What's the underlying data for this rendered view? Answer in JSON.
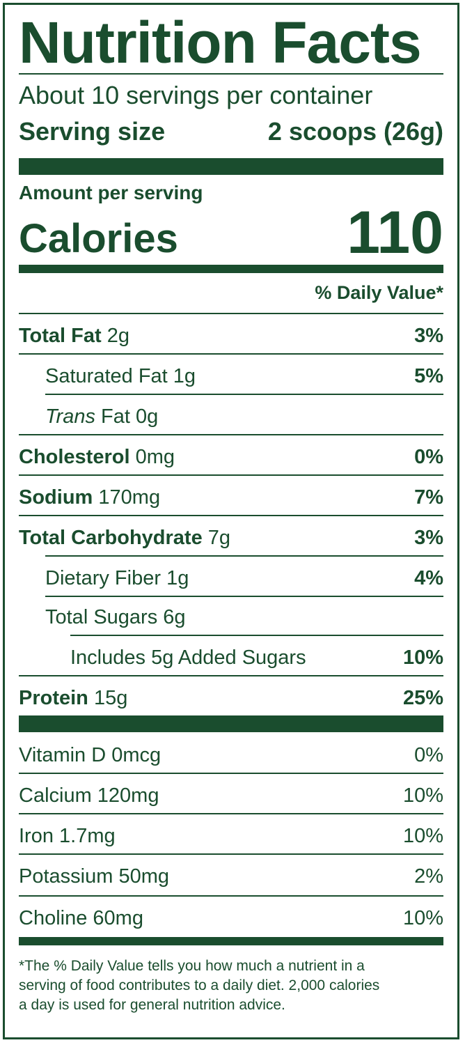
{
  "title": "Nutrition Facts",
  "servings_per_container": "About 10 servings per container",
  "serving_size": {
    "label": "Serving size",
    "value": "2 scoops (26g)"
  },
  "amount_per_serving": "Amount per serving",
  "calories": {
    "label": "Calories",
    "value": "110"
  },
  "daily_value_header": "% Daily Value*",
  "nutrients": {
    "total_fat": {
      "name": "Total Fat",
      "amount": "2g",
      "dv": "3%"
    },
    "saturated_fat": {
      "name": "Saturated Fat",
      "amount": "1g",
      "dv": "5%"
    },
    "trans_fat": {
      "name_italic": "Trans",
      "name_rest": "Fat",
      "amount": "0g"
    },
    "cholesterol": {
      "name": "Cholesterol",
      "amount": "0mg",
      "dv": "0%"
    },
    "sodium": {
      "name": "Sodium",
      "amount": "170mg",
      "dv": "7%"
    },
    "total_carbohydrate": {
      "name": "Total Carbohydrate",
      "amount": "7g",
      "dv": "3%"
    },
    "dietary_fiber": {
      "name": "Dietary Fiber",
      "amount": "1g",
      "dv": "4%"
    },
    "total_sugars": {
      "name": "Total Sugars",
      "amount": "6g"
    },
    "added_sugars": {
      "text": "Includes 5g Added Sugars",
      "dv": "10%"
    },
    "protein": {
      "name": "Protein",
      "amount": "15g",
      "dv": "25%"
    }
  },
  "vitamins": {
    "vitamin_d": {
      "text": "Vitamin D 0mcg",
      "dv": "0%"
    },
    "calcium": {
      "text": "Calcium 120mg",
      "dv": "10%"
    },
    "iron": {
      "text": "Iron 1.7mg",
      "dv": "10%"
    },
    "potassium": {
      "text": "Potassium 50mg",
      "dv": "2%"
    },
    "choline": {
      "text": "Choline 60mg",
      "dv": "10%"
    }
  },
  "footnote": {
    "line1": "*The % Daily Value tells you how much a nutrient in a",
    "line2": "serving of food contributes to a daily diet. 2,000 calories",
    "line3": "a day is used for general nutrition advice."
  },
  "colors": {
    "label_green": "#1a4d2e",
    "background": "#ffffff"
  }
}
